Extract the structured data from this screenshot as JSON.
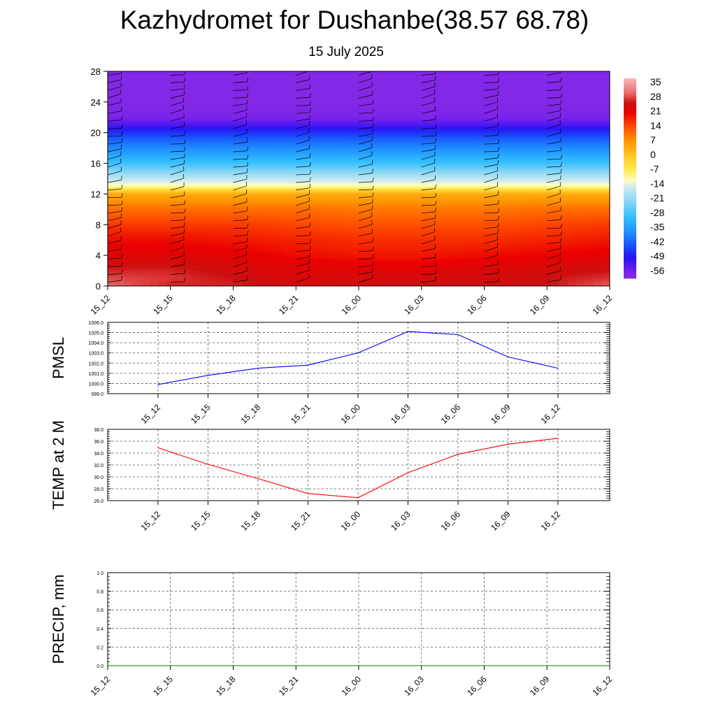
{
  "header": {
    "title": "Kazhydromet for Dushanbe(38.57 68.78)",
    "subtitle": "15 July 2025"
  },
  "chart_data": [
    {
      "type": "heatmap",
      "title": "",
      "x_categories": [
        "15_12",
        "15_15",
        "15_18",
        "15_21",
        "16_00",
        "16_03",
        "16_06",
        "16_09",
        "16_12"
      ],
      "y_ticks": [
        0,
        4,
        8,
        12,
        16,
        20,
        24,
        28
      ],
      "ylim": [
        0,
        28
      ],
      "colorbar_labels": [
        "35",
        "28",
        "21",
        "14",
        "7",
        "0",
        "-7",
        "-14",
        "-21",
        "-28",
        "-35",
        "-42",
        "-49",
        "-56"
      ],
      "colorbar_range": [
        -60,
        38
      ],
      "y_levels": [
        0,
        1,
        2,
        3,
        4,
        6,
        8,
        10,
        12,
        12.5,
        13,
        14,
        16,
        18,
        19,
        20,
        21,
        22,
        24,
        28
      ],
      "values": [
        [
          31,
          27,
          27,
          25,
          25,
          26,
          26,
          26,
          30
        ],
        [
          29,
          28,
          26,
          24,
          25,
          25,
          25,
          26,
          28
        ],
        [
          27,
          27,
          25,
          23,
          23,
          23,
          24,
          25,
          26
        ],
        [
          25,
          25,
          24,
          22,
          21,
          21,
          22,
          23,
          24
        ],
        [
          23,
          23,
          22,
          20,
          19,
          19,
          20,
          21,
          22
        ],
        [
          20,
          20,
          19,
          18,
          17,
          17,
          17,
          18,
          19
        ],
        [
          16,
          16,
          16,
          15,
          14,
          14,
          14,
          15,
          16
        ],
        [
          11,
          11,
          11,
          11,
          10,
          10,
          10,
          11,
          11
        ],
        [
          4,
          4,
          4,
          4,
          4,
          4,
          4,
          4,
          4
        ],
        [
          -3,
          -3,
          -3,
          -3,
          -3,
          -3,
          -3,
          -3,
          -3
        ],
        [
          -11,
          -11,
          -11,
          -11,
          -11,
          -11,
          -11,
          -11,
          -11
        ],
        [
          -17,
          -17,
          -17,
          -17,
          -17,
          -17,
          -17,
          -17,
          -17
        ],
        [
          -29,
          -29,
          -29,
          -29,
          -29,
          -29,
          -29,
          -29,
          -29
        ],
        [
          -38,
          -38,
          -38,
          -38,
          -38,
          -38,
          -38,
          -38,
          -38
        ],
        [
          -42,
          -42,
          -42,
          -42,
          -42,
          -42,
          -42,
          -42,
          -42
        ],
        [
          -47,
          -47,
          -47,
          -47,
          -47,
          -47,
          -47,
          -47,
          -47
        ],
        [
          -53,
          -53,
          -53,
          -53,
          -53,
          -53,
          -53,
          -53,
          -53
        ],
        [
          -58,
          -58,
          -58,
          -58,
          -58,
          -58,
          -58,
          -58,
          -58
        ],
        [
          -59,
          -59,
          -59,
          -59,
          -59,
          -59,
          -59,
          -59,
          -59
        ],
        [
          -59,
          -59,
          -59,
          -59,
          -59,
          -59,
          -59,
          -59,
          -59
        ]
      ],
      "wind_barbs": "overlaid at each time step and height level"
    },
    {
      "type": "line",
      "ylabel": "PMSL",
      "x_categories": [
        "15_12",
        "15_15",
        "15_18",
        "15_21",
        "16_00",
        "16_03",
        "16_06",
        "16_09",
        "16_12"
      ],
      "y_tick_labels": [
        "999.0",
        "1000.0",
        "1001.0",
        "1002.0",
        "1003.0",
        "1004.0",
        "1005.0",
        "1006.0"
      ],
      "ylim": [
        999,
        1006
      ],
      "series": [
        {
          "color": "#0000ff",
          "values": [
            999.9,
            1000.8,
            1001.5,
            1001.8,
            1003.0,
            1005.1,
            1004.8,
            1002.6,
            1001.5
          ]
        }
      ],
      "grid": true
    },
    {
      "type": "line",
      "ylabel": "TEMP at 2 M",
      "x_categories": [
        "15_12",
        "15_15",
        "15_18",
        "15_21",
        "16_00",
        "16_03",
        "16_06",
        "16_09",
        "16_12"
      ],
      "y_tick_labels": [
        "26.0",
        "28.0",
        "30.0",
        "32.0",
        "34.0",
        "36.0",
        "38.0"
      ],
      "ylim": [
        26,
        38
      ],
      "series": [
        {
          "color": "#ff0000",
          "values": [
            34.9,
            32.1,
            29.7,
            27.2,
            26.5,
            30.7,
            33.8,
            35.5,
            36.5
          ]
        }
      ],
      "grid": true
    },
    {
      "type": "line",
      "ylabel": "PRECIP, mm",
      "x_categories": [
        "15_12",
        "15_15",
        "15_18",
        "15_21",
        "16_00",
        "16_03",
        "16_06",
        "16_09",
        "16_12"
      ],
      "y_tick_labels": [
        "0.0",
        "0.2",
        "0.4",
        "0.6",
        "0.8",
        "1.0"
      ],
      "ylim": [
        0,
        1
      ],
      "series": [
        {
          "color": "#008000",
          "values": [
            0,
            0,
            0,
            0,
            0,
            0,
            0,
            0,
            0
          ]
        }
      ],
      "grid": true
    }
  ]
}
